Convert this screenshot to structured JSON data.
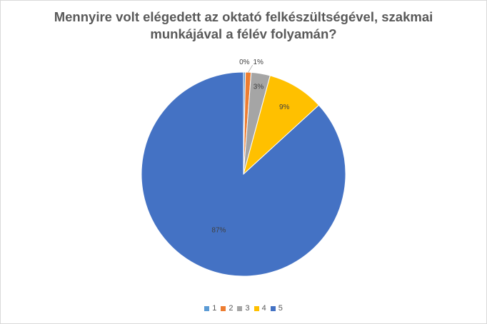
{
  "chart_data": {
    "type": "pie",
    "title_lines": [
      "Mennyire volt elégedett az oktató felkészültségével, szakmai",
      "munkájával  a félév folyamán?"
    ],
    "categories": [
      "1",
      "2",
      "3",
      "4",
      "5"
    ],
    "values": [
      0.3,
      0.9,
      3,
      9,
      86.8
    ],
    "data_labels": [
      "0%",
      "1%",
      "3%",
      "9%",
      "87%"
    ],
    "colors": [
      "#5b9bd5",
      "#ed7d31",
      "#a5a5a5",
      "#ffc000",
      "#4472c4"
    ],
    "legend_position": "bottom"
  }
}
